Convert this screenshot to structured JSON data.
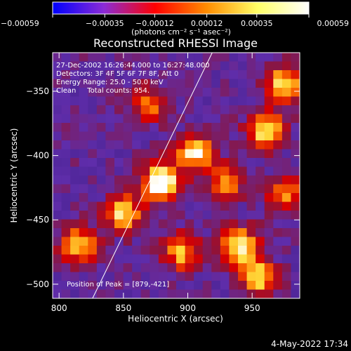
{
  "chart_data": {
    "type": "heatmap",
    "title": "Reconstructed RHESSI Image",
    "xlabel": "Heliocentric X (arcsec)",
    "ylabel": "Heliocentric Y (arcsec)",
    "xlim": [
      795,
      987
    ],
    "ylim": [
      -511,
      -320
    ],
    "x_ticks": [
      800,
      850,
      900,
      950
    ],
    "y_ticks": [
      -350,
      -400,
      -450,
      -500
    ],
    "x_tick_labels": [
      "800",
      "850",
      "900",
      "950"
    ],
    "y_tick_labels": [
      "−350",
      "−400",
      "−450",
      "−500"
    ],
    "colorbar": {
      "range": [
        -0.00059,
        0.00059
      ],
      "ticks": [
        -0.00059,
        -0.00035,
        -0.00012,
        0.00012,
        0.00035,
        0.00059
      ],
      "tick_labels": [
        "−0.00059",
        "−0.00035",
        "−0.00012",
        "0.00012",
        "0.00035",
        "0.00059"
      ],
      "unit_label": "(photons cm⁻² s⁻¹ asec⁻²)",
      "colors": [
        "#0000ff",
        "#8b2bd6",
        "#ff0000",
        "#ff8c00",
        "#ffff66",
        "#ffffff"
      ]
    },
    "annotations": {
      "line1": "27-Dec-2002 16:26:44.000 to 16:27:48.000",
      "line2": "Detectors: 3F 4F 5F 6F 7F 8F, Att 0",
      "line3": "Energy Range: 25.0 - 50.0 keV",
      "line4": "Clean     Total counts: 954.",
      "peak": "Position of Peak = [879,-421]"
    },
    "peak": [
      879,
      -421
    ],
    "limb_line": [
      [
        826,
        -511
      ],
      [
        919,
        -320
      ]
    ],
    "bright_regions": [
      {
        "x": 879,
        "y": -421,
        "intensity": 1.0
      },
      {
        "x": 905,
        "y": -398,
        "intensity": 0.75
      },
      {
        "x": 850,
        "y": -445,
        "intensity": 0.7
      },
      {
        "x": 815,
        "y": -470,
        "intensity": 0.65
      },
      {
        "x": 960,
        "y": -380,
        "intensity": 0.75
      },
      {
        "x": 975,
        "y": -345,
        "intensity": 0.7
      },
      {
        "x": 940,
        "y": -470,
        "intensity": 0.8
      },
      {
        "x": 955,
        "y": -495,
        "intensity": 0.7
      },
      {
        "x": 895,
        "y": -475,
        "intensity": 0.6
      },
      {
        "x": 870,
        "y": -360,
        "intensity": 0.45
      },
      {
        "x": 930,
        "y": -420,
        "intensity": 0.5
      },
      {
        "x": 975,
        "y": -430,
        "intensity": 0.55
      }
    ]
  },
  "footer": {
    "date": "4-May-2022 17:34"
  }
}
